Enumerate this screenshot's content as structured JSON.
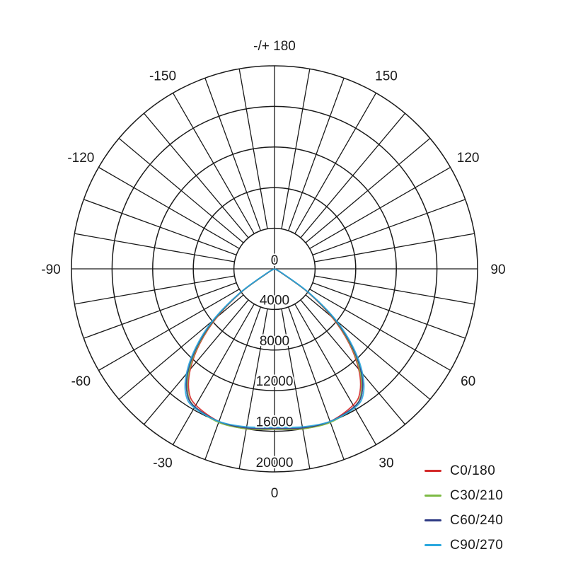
{
  "chart_data": {
    "type": "polar-line",
    "title": "",
    "radial_axis": {
      "range": [
        0,
        20000
      ],
      "ticks": [
        "0",
        "4000",
        "8000",
        "12000",
        "16000",
        "20000"
      ]
    },
    "angular_axis": {
      "tick_step_deg": 10,
      "labels": [
        {
          "angle": 0,
          "text": "0"
        },
        {
          "angle": 30,
          "text": "30"
        },
        {
          "angle": -30,
          "text": "-30"
        },
        {
          "angle": 60,
          "text": "60"
        },
        {
          "angle": -60,
          "text": "-60"
        },
        {
          "angle": 90,
          "text": "90"
        },
        {
          "angle": -90,
          "text": "-90"
        },
        {
          "angle": 120,
          "text": "120"
        },
        {
          "angle": -120,
          "text": "-120"
        },
        {
          "angle": 150,
          "text": "150"
        },
        {
          "angle": -150,
          "text": "-150"
        },
        {
          "angle": 180,
          "text": "-/+ 180"
        }
      ]
    },
    "grid": true,
    "legend_position": "bottom-right",
    "angles": [
      0,
      10,
      20,
      30,
      35,
      40,
      45,
      50,
      55,
      60,
      65
    ],
    "series": [
      {
        "name": "C0/180",
        "color": "#d42a2a",
        "values": [
          15800,
          16000,
          16000,
          15500,
          14700,
          12900,
          10400,
          7400,
          4000,
          700,
          0
        ]
      },
      {
        "name": "C30/210",
        "color": "#7cba44",
        "values": [
          15800,
          16000,
          16100,
          15700,
          14900,
          13100,
          10600,
          7600,
          4100,
          800,
          0
        ]
      },
      {
        "name": "C60/240",
        "color": "#2e3a84",
        "values": [
          15700,
          15900,
          16000,
          15700,
          15000,
          13300,
          10800,
          7800,
          4200,
          900,
          0
        ]
      },
      {
        "name": "C90/270",
        "color": "#2aa8de",
        "values": [
          15600,
          15800,
          16000,
          15800,
          15200,
          13500,
          11000,
          8000,
          4300,
          1000,
          0
        ]
      }
    ]
  }
}
